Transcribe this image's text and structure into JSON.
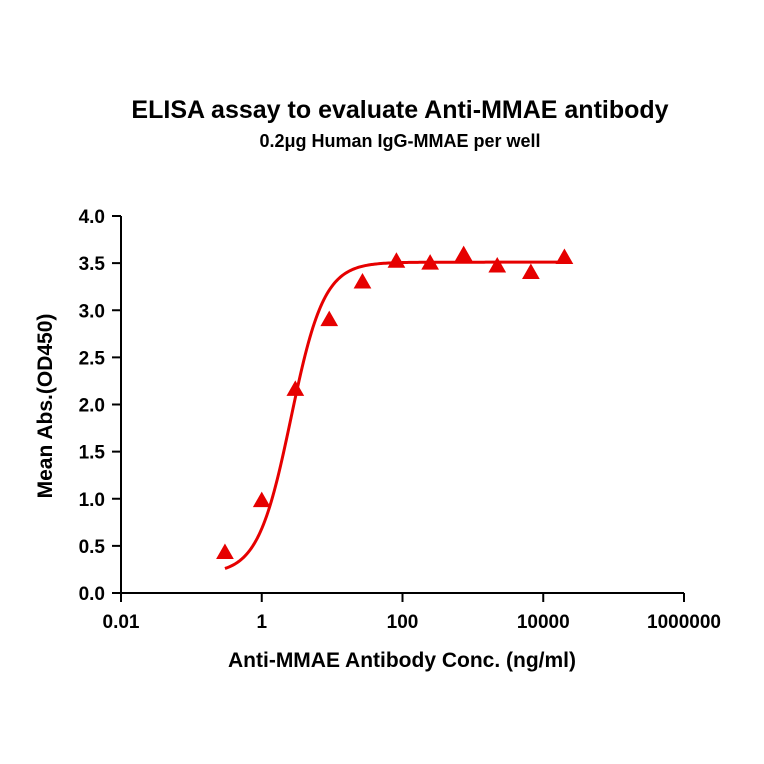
{
  "chart_data": {
    "type": "scatter",
    "title": "ELISA assay to evaluate Anti-MMAE antibody",
    "subtitle": "0.2μg Human IgG-MMAE per well",
    "xlabel": "Anti-MMAE Antibody Conc. (ng/ml)",
    "ylabel": "Mean Abs.(OD450)",
    "x_scale": "log",
    "xlim": [
      0.01,
      1000000
    ],
    "ylim": [
      0,
      4.0
    ],
    "x_ticks": [
      "0.01",
      "1",
      "100",
      "10000",
      "1000000"
    ],
    "y_ticks": [
      "0.0",
      "0.5",
      "1.0",
      "1.5",
      "2.0",
      "2.5",
      "3.0",
      "3.5",
      "4.0"
    ],
    "grid": false,
    "legend": "none",
    "colors": {
      "series": "#e60000",
      "axis": "#000000"
    },
    "series": [
      {
        "marker": "triangle",
        "points": [
          {
            "x": 0.3,
            "y": 0.43
          },
          {
            "x": 1.0,
            "y": 0.98
          },
          {
            "x": 3.0,
            "y": 2.16
          },
          {
            "x": 9.1,
            "y": 2.9
          },
          {
            "x": 27,
            "y": 3.3
          },
          {
            "x": 82,
            "y": 3.52
          },
          {
            "x": 247,
            "y": 3.5
          },
          {
            "x": 740,
            "y": 3.59
          },
          {
            "x": 2220,
            "y": 3.47
          },
          {
            "x": 6670,
            "y": 3.4
          },
          {
            "x": 20000,
            "y": 3.56
          }
        ],
        "fit_curve": {
          "model": "4PL",
          "bottom": 0.2,
          "top": 3.51,
          "ec50": 2.6,
          "hill": 1.85,
          "x_range": [
            0.3,
            20000
          ]
        }
      }
    ]
  }
}
